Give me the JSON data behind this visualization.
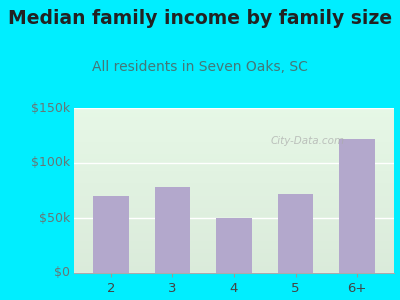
{
  "title": "Median family income by family size",
  "subtitle": "All residents in Seven Oaks, SC",
  "categories": [
    "2",
    "3",
    "4",
    "5",
    "6+"
  ],
  "values": [
    70000,
    78000,
    50000,
    72000,
    122000
  ],
  "bar_color": "#b3a8cc",
  "background_outer": "#00eeff",
  "ylim": [
    0,
    150000
  ],
  "yticks": [
    0,
    50000,
    100000,
    150000
  ],
  "ytick_labels": [
    "$0",
    "$50k",
    "$100k",
    "$150k"
  ],
  "title_fontsize": 13.5,
  "subtitle_fontsize": 10,
  "title_color": "#222222",
  "subtitle_color": "#447777",
  "tick_label_color": "#667777",
  "watermark": "City-Data.com"
}
